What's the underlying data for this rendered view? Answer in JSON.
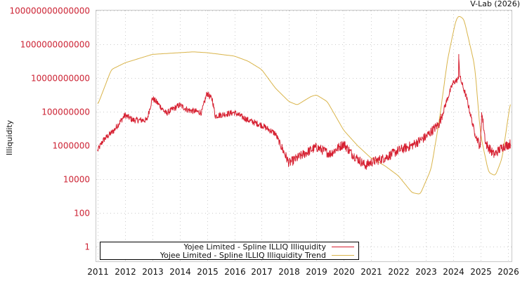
{
  "credit": "V-Lab (2026)",
  "colors": {
    "illiquidity": "#d62031",
    "trend": "#d9b44a",
    "ytick": "#cc2233",
    "grid": "#cccccc",
    "frame": "#c8c8c8"
  },
  "chart_data": {
    "type": "line",
    "title": "",
    "xlabel": "",
    "ylabel": "Illiquidity",
    "yscale": "log",
    "ylim": [
      0.3,
      100000000000000.0
    ],
    "xlim": [
      2010.95,
      2026.15
    ],
    "grid": true,
    "legend_position": "bottom-left (inside)",
    "yticks": [
      {
        "value": 100000000000000.0,
        "label": "100000000000000"
      },
      {
        "value": 1000000000000.0,
        "label": "1000000000000"
      },
      {
        "value": 10000000000.0,
        "label": "10000000000"
      },
      {
        "value": 100000000.0,
        "label": "100000000"
      },
      {
        "value": 1000000.0,
        "label": "1000000"
      },
      {
        "value": 10000.0,
        "label": "10000"
      },
      {
        "value": 100.0,
        "label": "100"
      },
      {
        "value": 1,
        "label": "1"
      }
    ],
    "xticks": [
      "2011",
      "2012",
      "2013",
      "2014",
      "2015",
      "2016",
      "2017",
      "2018",
      "2019",
      "2020",
      "2021",
      "2022",
      "2023",
      "2024",
      "2025",
      "2026"
    ],
    "series": [
      {
        "name": "Yojee Limited - Spline ILLIQ Illiquidity",
        "color": "#d62031",
        "noisy": true,
        "points_log10": [
          [
            2011.0,
            5.7
          ],
          [
            2011.2,
            6.3
          ],
          [
            2011.6,
            6.9
          ],
          [
            2012.0,
            7.8
          ],
          [
            2012.3,
            7.5
          ],
          [
            2012.8,
            7.5
          ],
          [
            2013.0,
            8.8
          ],
          [
            2013.2,
            8.5
          ],
          [
            2013.5,
            7.9
          ],
          [
            2014.0,
            8.4
          ],
          [
            2014.3,
            8.1
          ],
          [
            2014.8,
            7.95
          ],
          [
            2015.0,
            9.1
          ],
          [
            2015.2,
            8.7
          ],
          [
            2015.3,
            7.75
          ],
          [
            2016.0,
            7.95
          ],
          [
            2016.5,
            7.5
          ],
          [
            2017.0,
            7.2
          ],
          [
            2017.5,
            6.7
          ],
          [
            2018.0,
            4.95
          ],
          [
            2018.5,
            5.45
          ],
          [
            2019.0,
            5.9
          ],
          [
            2019.5,
            5.5
          ],
          [
            2020.0,
            6.1
          ],
          [
            2020.3,
            5.5
          ],
          [
            2020.8,
            4.8
          ],
          [
            2021.0,
            5.0
          ],
          [
            2021.5,
            5.25
          ],
          [
            2022.0,
            5.7
          ],
          [
            2022.5,
            6.0
          ],
          [
            2023.0,
            6.5
          ],
          [
            2023.5,
            7.3
          ],
          [
            2023.8,
            8.8
          ],
          [
            2024.0,
            9.7
          ],
          [
            2024.2,
            9.95
          ],
          [
            2024.21,
            11.4
          ],
          [
            2024.25,
            10.05
          ],
          [
            2024.5,
            8.8
          ],
          [
            2024.8,
            6.7
          ],
          [
            2025.0,
            5.9
          ],
          [
            2025.05,
            7.95
          ],
          [
            2025.2,
            6.1
          ],
          [
            2025.5,
            5.45
          ],
          [
            2025.8,
            5.9
          ],
          [
            2026.1,
            6.1
          ]
        ]
      },
      {
        "name": "Yojee Limited - Spline ILLIQ Illiquidity Trend",
        "color": "#d9b44a",
        "noisy": false,
        "points_log10": [
          [
            2011.0,
            8.4
          ],
          [
            2011.5,
            10.5
          ],
          [
            2012.0,
            10.9
          ],
          [
            2013.0,
            11.4
          ],
          [
            2014.0,
            11.5
          ],
          [
            2014.5,
            11.55
          ],
          [
            2015.0,
            11.5
          ],
          [
            2016.0,
            11.3
          ],
          [
            2016.5,
            11.0
          ],
          [
            2017.0,
            10.5
          ],
          [
            2017.5,
            9.4
          ],
          [
            2018.0,
            8.6
          ],
          [
            2018.3,
            8.4
          ],
          [
            2018.8,
            8.9
          ],
          [
            2019.0,
            9.0
          ],
          [
            2019.4,
            8.6
          ],
          [
            2020.0,
            6.9
          ],
          [
            2020.5,
            6.0
          ],
          [
            2021.0,
            5.25
          ],
          [
            2021.5,
            4.8
          ],
          [
            2022.0,
            4.2
          ],
          [
            2022.5,
            3.2
          ],
          [
            2022.8,
            3.1
          ],
          [
            2023.2,
            4.6
          ],
          [
            2023.5,
            7.5
          ],
          [
            2023.8,
            11.1
          ],
          [
            2024.1,
            13.4
          ],
          [
            2024.2,
            13.7
          ],
          [
            2024.4,
            13.5
          ],
          [
            2024.8,
            10.7
          ],
          [
            2025.0,
            6.7
          ],
          [
            2025.3,
            4.4
          ],
          [
            2025.55,
            4.2
          ],
          [
            2025.8,
            5.25
          ],
          [
            2026.1,
            8.6
          ]
        ]
      }
    ]
  },
  "legend": {
    "items": [
      {
        "label": "Yojee Limited - Spline ILLIQ Illiquidity",
        "color": "#d62031"
      },
      {
        "label": "Yojee Limited - Spline ILLIQ Illiquidity Trend",
        "color": "#d9b44a"
      }
    ]
  }
}
